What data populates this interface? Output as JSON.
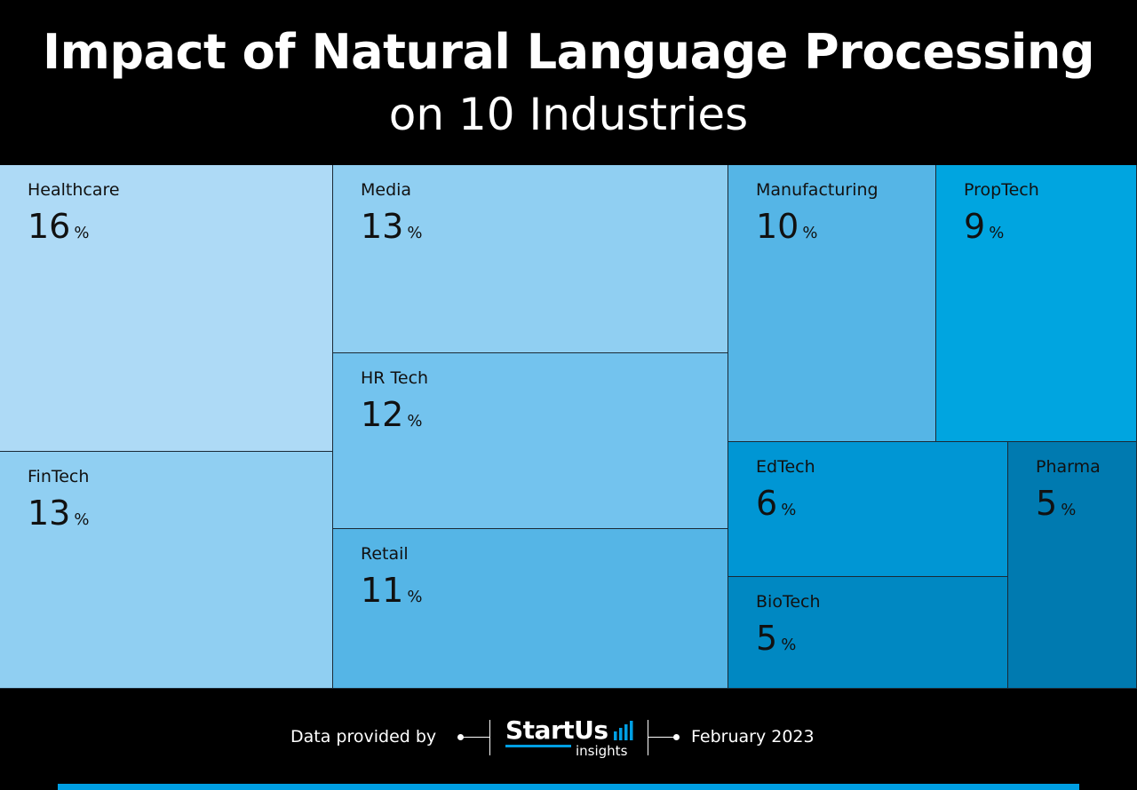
{
  "title": "Impact of Natural Language Processing",
  "subtitle": "on 10 Industries",
  "chart_data": {
    "type": "treemap",
    "unit": "%",
    "items": [
      {
        "name": "Healthcare",
        "value": 16,
        "color": "#aedaf6"
      },
      {
        "name": "FinTech",
        "value": 13,
        "color": "#90cff2"
      },
      {
        "name": "Media",
        "value": 13,
        "color": "#90cff2"
      },
      {
        "name": "HR Tech",
        "value": 12,
        "color": "#73c3ee"
      },
      {
        "name": "Retail",
        "value": 11,
        "color": "#55b5e6"
      },
      {
        "name": "Manufacturing",
        "value": 10,
        "color": "#55b5e6"
      },
      {
        "name": "PropTech",
        "value": 9,
        "color": "#00a5e0"
      },
      {
        "name": "EdTech",
        "value": 6,
        "color": "#0096d4"
      },
      {
        "name": "Pharma",
        "value": 5,
        "color": "#007ab0"
      },
      {
        "name": "BioTech",
        "value": 5,
        "color": "#0088c2"
      }
    ]
  },
  "footer": {
    "provided_by": "Data provided by",
    "logo_main": "StartUs",
    "logo_sub": "insights",
    "date": "February 2023",
    "accent_color": "#009fe3"
  }
}
